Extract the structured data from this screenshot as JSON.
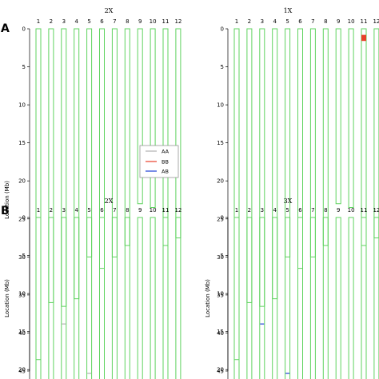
{
  "chart_data": [
    {
      "type": "chromosome-map",
      "panel": "A",
      "title": "2X",
      "ylabel": "Location (Mb)",
      "ylim": [
        0,
        45
      ],
      "yticks": [
        0,
        5,
        10,
        15,
        20,
        25,
        30,
        35,
        40,
        45
      ],
      "chromosomes": [
        "1",
        "2",
        "3",
        "4",
        "5",
        "6",
        "7",
        "8",
        "9",
        "10",
        "11",
        "12"
      ],
      "lengths": [
        43.5,
        36.0,
        36.5,
        35.5,
        30.0,
        31.5,
        30.0,
        28.5,
        23.0,
        23.5,
        28.5,
        27.5
      ],
      "markers": []
    },
    {
      "type": "chromosome-map",
      "panel": "",
      "title": "1X",
      "ylabel": "",
      "ylim": [
        0,
        45
      ],
      "yticks": [
        0,
        5,
        10,
        15,
        20,
        25,
        30,
        35,
        40,
        45
      ],
      "chromosomes": [
        "1",
        "2",
        "3",
        "4",
        "5",
        "6",
        "7",
        "8",
        "9",
        "10",
        "11",
        "12"
      ],
      "lengths": [
        43.5,
        36.0,
        36.5,
        35.5,
        30.0,
        31.5,
        30.0,
        28.5,
        23.0,
        23.5,
        28.5,
        27.5
      ],
      "markers": [
        {
          "chromosome": "11",
          "start": 0.8,
          "end": 1.6,
          "genotype": "BB"
        }
      ]
    },
    {
      "type": "chromosome-map",
      "panel": "B",
      "title": "2X",
      "ylabel": "Location (Mb)",
      "ylim": [
        0,
        45
      ],
      "yticks": [
        0,
        5,
        10,
        15,
        20,
        25,
        30,
        35,
        40,
        45
      ],
      "chromosomes": [
        "1",
        "2",
        "3",
        "4",
        "5",
        "6",
        "7",
        "8",
        "9",
        "10",
        "11",
        "12"
      ],
      "lengths": [
        43.5,
        36.0,
        36.5,
        35.5,
        30.0,
        31.5,
        30.0,
        28.5,
        23.0,
        23.5,
        28.5,
        27.5
      ],
      "markers": [
        {
          "chromosome": "3",
          "start": 14.0,
          "end": 14.0,
          "genotype": "AA"
        },
        {
          "chromosome": "5",
          "start": 20.5,
          "end": 20.5,
          "genotype": "AA"
        }
      ]
    },
    {
      "type": "chromosome-map",
      "panel": "",
      "title": "3X",
      "ylabel": "Location (Mb)",
      "ylim": [
        0,
        45
      ],
      "yticks": [
        0,
        5,
        10,
        15,
        20,
        25,
        30,
        35,
        40,
        45
      ],
      "chromosomes": [
        "1",
        "2",
        "3",
        "4",
        "5",
        "6",
        "7",
        "8",
        "9",
        "10",
        "11",
        "12"
      ],
      "lengths": [
        43.5,
        36.0,
        36.5,
        35.5,
        30.0,
        31.5,
        30.0,
        28.5,
        23.0,
        23.5,
        28.5,
        27.5
      ],
      "markers": [
        {
          "chromosome": "3",
          "start": 14.0,
          "end": 14.0,
          "genotype": "AB"
        },
        {
          "chromosome": "5",
          "start": 20.5,
          "end": 20.5,
          "genotype": "AB"
        }
      ]
    }
  ],
  "legend": {
    "items": [
      {
        "label": "AA",
        "color": "#b0b0b0"
      },
      {
        "label": "BB",
        "color": "#e8402a"
      },
      {
        "label": "AB",
        "color": "#1f3fd6"
      }
    ]
  },
  "colors": {
    "chromosome": "#5fd35f",
    "axis": "#000000"
  }
}
